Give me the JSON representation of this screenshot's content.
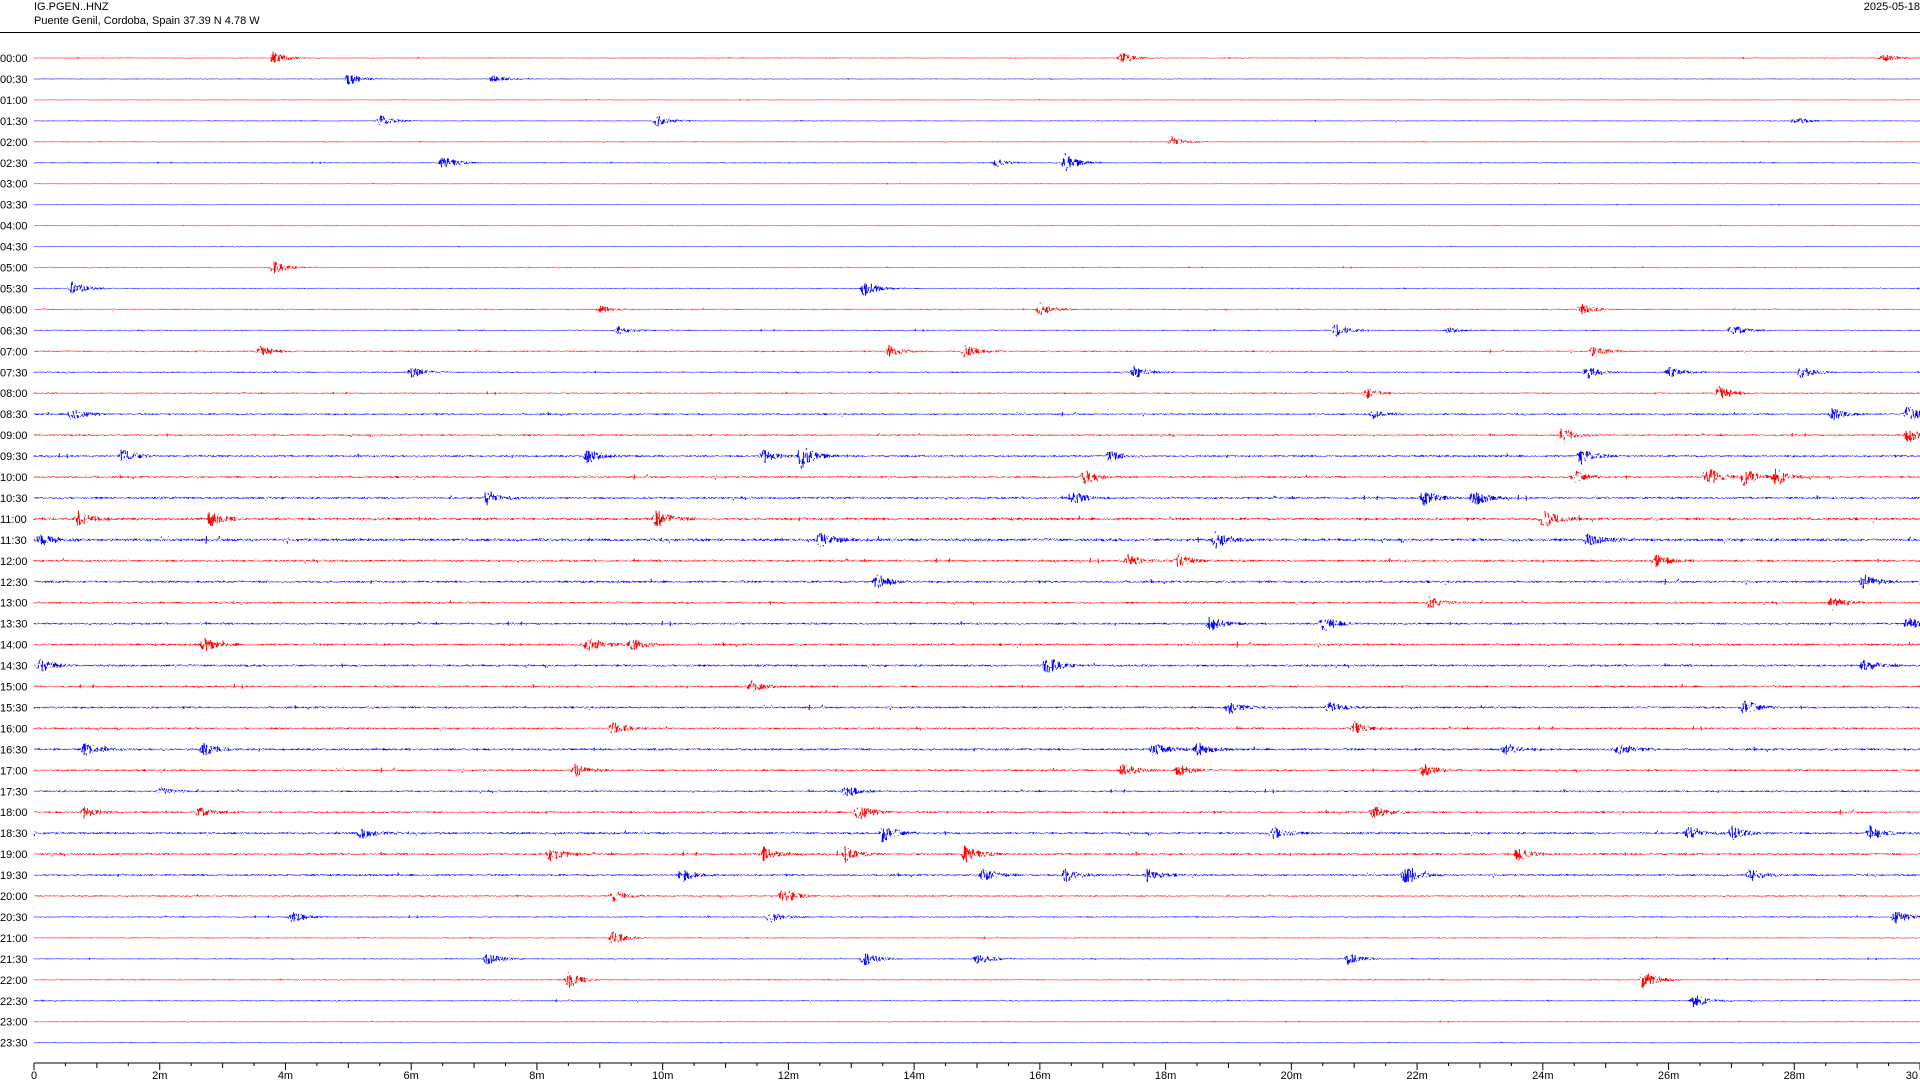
{
  "header": {
    "station": "IG.PGEN..HNZ",
    "location": "Puente Genil, Cordoba, Spain  37.39 N 4.78 W",
    "date": "2025-05-18"
  },
  "colors": {
    "odd_trace": "#ff0000",
    "even_trace": "#0000ff",
    "axis": "#000000"
  },
  "chart_data": {
    "type": "helicorder",
    "title": "",
    "x_unit": "minutes",
    "xlim": [
      0,
      30
    ],
    "rows": [
      "00:00",
      "00:30",
      "01:00",
      "01:30",
      "02:00",
      "02:30",
      "03:00",
      "03:30",
      "04:00",
      "04:30",
      "05:00",
      "05:30",
      "06:00",
      "06:30",
      "07:00",
      "07:30",
      "08:00",
      "08:30",
      "09:00",
      "09:30",
      "10:00",
      "10:30",
      "11:00",
      "11:30",
      "12:00",
      "12:30",
      "13:00",
      "13:30",
      "14:00",
      "14:30",
      "15:00",
      "15:30",
      "16:00",
      "16:30",
      "17:00",
      "17:30",
      "18:00",
      "18:30",
      "19:00",
      "19:30",
      "20:00",
      "20:30",
      "21:00",
      "21:30",
      "22:00",
      "22:30",
      "23:00",
      "23:30"
    ],
    "x_ticks": [
      "0",
      "2m",
      "4m",
      "6m",
      "8m",
      "10m",
      "12m",
      "14m",
      "16m",
      "18m",
      "20m",
      "22m",
      "24m",
      "26m",
      "28m",
      "30"
    ],
    "x_tick_values": [
      0,
      2,
      4,
      6,
      8,
      10,
      12,
      14,
      16,
      18,
      20,
      22,
      24,
      26,
      28,
      30
    ],
    "noise_level": [
      0.3,
      0.3,
      0.2,
      0.3,
      0.3,
      0.35,
      0.2,
      0.2,
      0.2,
      0.2,
      0.3,
      0.3,
      0.4,
      0.4,
      0.5,
      0.5,
      0.5,
      0.7,
      0.7,
      0.8,
      0.8,
      0.9,
      1.1,
      1.2,
      0.9,
      0.9,
      0.8,
      0.8,
      0.9,
      0.9,
      0.8,
      0.8,
      0.8,
      0.9,
      0.8,
      0.7,
      0.8,
      0.9,
      0.9,
      0.8,
      0.6,
      0.5,
      0.4,
      0.4,
      0.4,
      0.4,
      0.3,
      0.3
    ],
    "events": [
      {
        "row": "00:00",
        "minute": 3.8,
        "amplitude": 1.0
      },
      {
        "row": "00:00",
        "minute": 17.3,
        "amplitude": 0.8
      },
      {
        "row": "00:00",
        "minute": 29.4,
        "amplitude": 0.6
      },
      {
        "row": "00:30",
        "minute": 5.0,
        "amplitude": 0.9
      },
      {
        "row": "00:30",
        "minute": 7.3,
        "amplitude": 0.5
      },
      {
        "row": "01:30",
        "minute": 5.5,
        "amplitude": 0.9
      },
      {
        "row": "01:30",
        "minute": 9.9,
        "amplitude": 0.9
      },
      {
        "row": "01:30",
        "minute": 28.0,
        "amplitude": 0.6
      },
      {
        "row": "02:00",
        "minute": 18.1,
        "amplitude": 0.8
      },
      {
        "row": "02:30",
        "minute": 6.5,
        "amplitude": 1.0
      },
      {
        "row": "02:30",
        "minute": 15.3,
        "amplitude": 0.6
      },
      {
        "row": "02:30",
        "minute": 16.4,
        "amplitude": 1.4
      },
      {
        "row": "05:00",
        "minute": 3.8,
        "amplitude": 1.0
      },
      {
        "row": "05:30",
        "minute": 0.6,
        "amplitude": 1.2
      },
      {
        "row": "05:30",
        "minute": 13.2,
        "amplitude": 1.2
      },
      {
        "row": "06:00",
        "minute": 9.0,
        "amplitude": 0.5
      },
      {
        "row": "06:00",
        "minute": 16.0,
        "amplitude": 1.0
      },
      {
        "row": "06:00",
        "minute": 24.6,
        "amplitude": 0.8
      },
      {
        "row": "06:30",
        "minute": 9.3,
        "amplitude": 0.6
      },
      {
        "row": "06:30",
        "minute": 20.7,
        "amplitude": 1.0
      },
      {
        "row": "06:30",
        "minute": 22.5,
        "amplitude": 0.4
      },
      {
        "row": "06:30",
        "minute": 27.0,
        "amplitude": 0.9
      },
      {
        "row": "07:00",
        "minute": 3.6,
        "amplitude": 0.8
      },
      {
        "row": "07:00",
        "minute": 13.6,
        "amplitude": 0.9
      },
      {
        "row": "07:00",
        "minute": 14.8,
        "amplitude": 0.9
      },
      {
        "row": "07:00",
        "minute": 24.8,
        "amplitude": 0.8
      },
      {
        "row": "07:30",
        "minute": 6.0,
        "amplitude": 0.9
      },
      {
        "row": "07:30",
        "minute": 17.5,
        "amplitude": 0.9
      },
      {
        "row": "07:30",
        "minute": 24.7,
        "amplitude": 0.9
      },
      {
        "row": "07:30",
        "minute": 26.0,
        "amplitude": 0.9
      },
      {
        "row": "07:30",
        "minute": 28.1,
        "amplitude": 1.0
      },
      {
        "row": "08:00",
        "minute": 21.2,
        "amplitude": 0.8
      },
      {
        "row": "08:00",
        "minute": 26.8,
        "amplitude": 1.1
      },
      {
        "row": "08:30",
        "minute": 0.6,
        "amplitude": 1.0
      },
      {
        "row": "08:30",
        "minute": 21.3,
        "amplitude": 0.6
      },
      {
        "row": "08:30",
        "minute": 28.6,
        "amplitude": 0.9
      },
      {
        "row": "08:30",
        "minute": 29.8,
        "amplitude": 1.3
      },
      {
        "row": "09:00",
        "minute": 24.3,
        "amplitude": 1.0
      },
      {
        "row": "09:00",
        "minute": 29.8,
        "amplitude": 1.0
      },
      {
        "row": "09:30",
        "minute": 1.4,
        "amplitude": 1.0
      },
      {
        "row": "09:30",
        "minute": 8.8,
        "amplitude": 1.0
      },
      {
        "row": "09:30",
        "minute": 11.6,
        "amplitude": 1.0
      },
      {
        "row": "09:30",
        "minute": 12.2,
        "amplitude": 1.8
      },
      {
        "row": "09:30",
        "minute": 17.1,
        "amplitude": 0.8
      },
      {
        "row": "09:30",
        "minute": 24.6,
        "amplitude": 1.2
      },
      {
        "row": "10:00",
        "minute": 16.7,
        "amplitude": 1.0
      },
      {
        "row": "10:00",
        "minute": 24.5,
        "amplitude": 0.9
      },
      {
        "row": "10:00",
        "minute": 26.6,
        "amplitude": 1.6
      },
      {
        "row": "10:00",
        "minute": 27.2,
        "amplitude": 1.3
      },
      {
        "row": "10:00",
        "minute": 27.7,
        "amplitude": 1.3
      },
      {
        "row": "10:30",
        "minute": 7.2,
        "amplitude": 1.0
      },
      {
        "row": "10:30",
        "minute": 16.5,
        "amplitude": 1.0
      },
      {
        "row": "10:30",
        "minute": 22.1,
        "amplitude": 1.2
      },
      {
        "row": "10:30",
        "minute": 22.9,
        "amplitude": 1.2
      },
      {
        "row": "11:00",
        "minute": 0.7,
        "amplitude": 1.0
      },
      {
        "row": "11:00",
        "minute": 2.8,
        "amplitude": 1.0
      },
      {
        "row": "11:00",
        "minute": 9.9,
        "amplitude": 1.3
      },
      {
        "row": "11:00",
        "minute": 24.0,
        "amplitude": 1.4
      },
      {
        "row": "11:30",
        "minute": 0.1,
        "amplitude": 1.0
      },
      {
        "row": "11:30",
        "minute": 12.5,
        "amplitude": 1.1
      },
      {
        "row": "11:30",
        "minute": 18.8,
        "amplitude": 1.3
      },
      {
        "row": "11:30",
        "minute": 24.7,
        "amplitude": 1.0
      },
      {
        "row": "12:00",
        "minute": 17.4,
        "amplitude": 0.9
      },
      {
        "row": "12:00",
        "minute": 18.2,
        "amplitude": 1.0
      },
      {
        "row": "12:00",
        "minute": 25.8,
        "amplitude": 0.9
      },
      {
        "row": "12:30",
        "minute": 13.4,
        "amplitude": 1.1
      },
      {
        "row": "12:30",
        "minute": 29.1,
        "amplitude": 1.2
      },
      {
        "row": "13:00",
        "minute": 22.2,
        "amplitude": 1.0
      },
      {
        "row": "13:00",
        "minute": 28.6,
        "amplitude": 1.0
      },
      {
        "row": "13:30",
        "minute": 18.7,
        "amplitude": 1.1
      },
      {
        "row": "13:30",
        "minute": 20.5,
        "amplitude": 1.2
      },
      {
        "row": "13:30",
        "minute": 29.8,
        "amplitude": 0.9
      },
      {
        "row": "14:00",
        "minute": 2.7,
        "amplitude": 1.0
      },
      {
        "row": "14:00",
        "minute": 8.8,
        "amplitude": 1.1
      },
      {
        "row": "14:00",
        "minute": 9.5,
        "amplitude": 1.0
      },
      {
        "row": "14:30",
        "minute": 0.1,
        "amplitude": 1.0
      },
      {
        "row": "14:30",
        "minute": 16.1,
        "amplitude": 1.4
      },
      {
        "row": "14:30",
        "minute": 29.1,
        "amplitude": 0.8
      },
      {
        "row": "15:00",
        "minute": 11.4,
        "amplitude": 0.8
      },
      {
        "row": "15:30",
        "minute": 19.0,
        "amplitude": 1.0
      },
      {
        "row": "15:30",
        "minute": 20.6,
        "amplitude": 1.0
      },
      {
        "row": "15:30",
        "minute": 27.2,
        "amplitude": 1.2
      },
      {
        "row": "16:00",
        "minute": 9.2,
        "amplitude": 0.9
      },
      {
        "row": "16:00",
        "minute": 21.0,
        "amplitude": 1.0
      },
      {
        "row": "16:30",
        "minute": 0.8,
        "amplitude": 0.9
      },
      {
        "row": "16:30",
        "minute": 2.7,
        "amplitude": 0.9
      },
      {
        "row": "16:30",
        "minute": 17.8,
        "amplitude": 1.0
      },
      {
        "row": "16:30",
        "minute": 18.5,
        "amplitude": 1.0
      },
      {
        "row": "16:30",
        "minute": 23.4,
        "amplitude": 0.9
      },
      {
        "row": "16:30",
        "minute": 25.2,
        "amplitude": 0.9
      },
      {
        "row": "17:00",
        "minute": 8.6,
        "amplitude": 1.0
      },
      {
        "row": "17:00",
        "minute": 17.3,
        "amplitude": 1.1
      },
      {
        "row": "17:00",
        "minute": 18.2,
        "amplitude": 0.9
      },
      {
        "row": "17:00",
        "minute": 22.1,
        "amplitude": 1.0
      },
      {
        "row": "17:30",
        "minute": 2.0,
        "amplitude": 0.6
      },
      {
        "row": "17:30",
        "minute": 12.9,
        "amplitude": 1.0
      },
      {
        "row": "18:00",
        "minute": 0.8,
        "amplitude": 0.8
      },
      {
        "row": "18:00",
        "minute": 2.6,
        "amplitude": 0.8
      },
      {
        "row": "18:00",
        "minute": 13.1,
        "amplitude": 1.3
      },
      {
        "row": "18:00",
        "minute": 21.3,
        "amplitude": 1.0
      },
      {
        "row": "18:30",
        "minute": 5.2,
        "amplitude": 0.9
      },
      {
        "row": "18:30",
        "minute": 13.5,
        "amplitude": 1.3
      },
      {
        "row": "18:30",
        "minute": 19.7,
        "amplitude": 0.9
      },
      {
        "row": "18:30",
        "minute": 26.3,
        "amplitude": 1.0
      },
      {
        "row": "18:30",
        "minute": 27.0,
        "amplitude": 1.0
      },
      {
        "row": "18:30",
        "minute": 29.2,
        "amplitude": 1.0
      },
      {
        "row": "19:00",
        "minute": 8.2,
        "amplitude": 1.1
      },
      {
        "row": "19:00",
        "minute": 11.6,
        "amplitude": 1.0
      },
      {
        "row": "19:00",
        "minute": 12.9,
        "amplitude": 1.1
      },
      {
        "row": "19:00",
        "minute": 14.8,
        "amplitude": 1.3
      },
      {
        "row": "19:00",
        "minute": 23.6,
        "amplitude": 0.9
      },
      {
        "row": "19:30",
        "minute": 10.3,
        "amplitude": 0.9
      },
      {
        "row": "19:30",
        "minute": 15.1,
        "amplitude": 1.0
      },
      {
        "row": "19:30",
        "minute": 16.4,
        "amplitude": 1.0
      },
      {
        "row": "19:30",
        "minute": 17.7,
        "amplitude": 0.9
      },
      {
        "row": "19:30",
        "minute": 21.8,
        "amplitude": 1.2
      },
      {
        "row": "19:30",
        "minute": 27.3,
        "amplitude": 0.9
      },
      {
        "row": "20:00",
        "minute": 9.2,
        "amplitude": 0.9
      },
      {
        "row": "20:00",
        "minute": 11.9,
        "amplitude": 1.2
      },
      {
        "row": "20:30",
        "minute": 4.1,
        "amplitude": 1.0
      },
      {
        "row": "20:30",
        "minute": 11.7,
        "amplitude": 0.8
      },
      {
        "row": "20:30",
        "minute": 29.6,
        "amplitude": 1.0
      },
      {
        "row": "21:00",
        "minute": 9.2,
        "amplitude": 1.0
      },
      {
        "row": "21:30",
        "minute": 7.2,
        "amplitude": 0.9
      },
      {
        "row": "21:30",
        "minute": 13.2,
        "amplitude": 1.1
      },
      {
        "row": "21:30",
        "minute": 15.0,
        "amplitude": 1.0
      },
      {
        "row": "21:30",
        "minute": 20.9,
        "amplitude": 0.9
      },
      {
        "row": "22:00",
        "minute": 8.5,
        "amplitude": 1.2
      },
      {
        "row": "22:00",
        "minute": 25.6,
        "amplitude": 1.5
      },
      {
        "row": "22:30",
        "minute": 26.4,
        "amplitude": 1.1
      }
    ]
  }
}
